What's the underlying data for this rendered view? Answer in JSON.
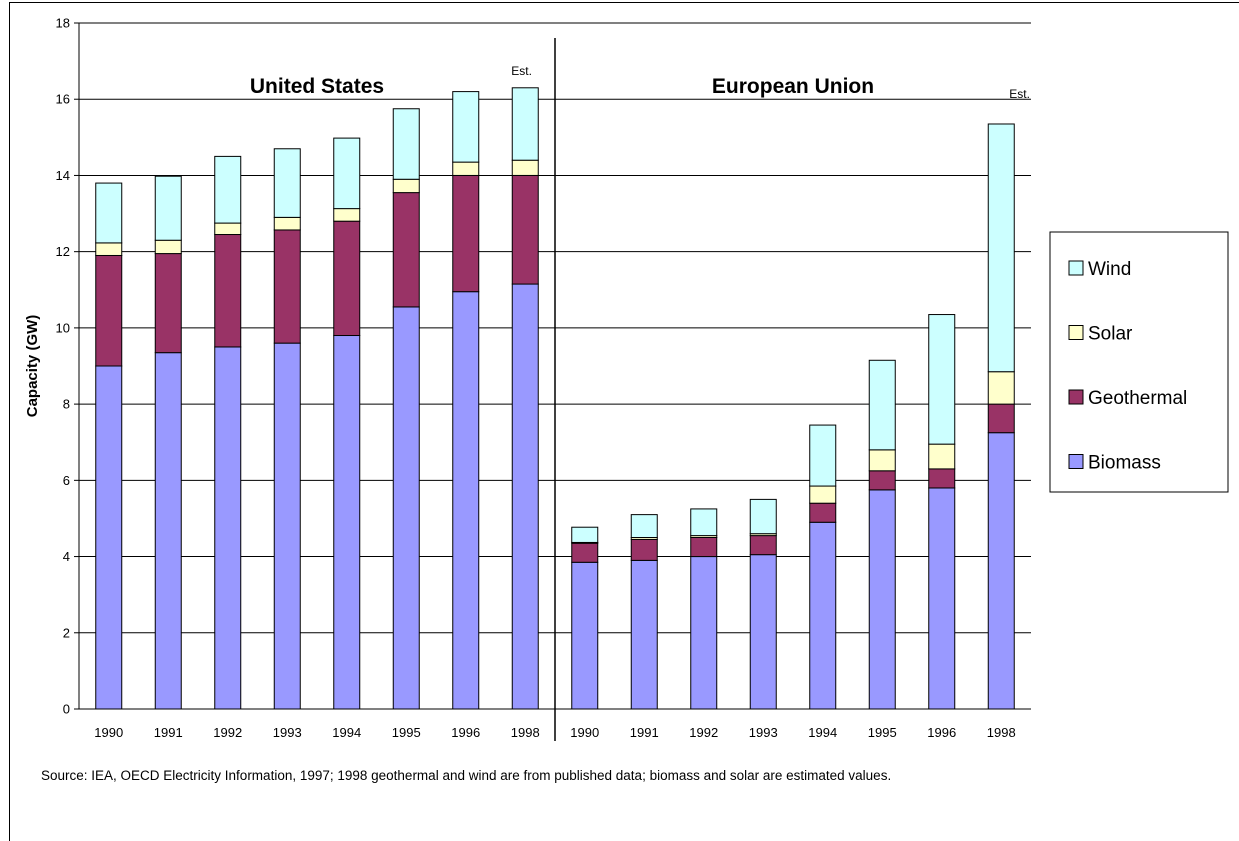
{
  "chart_data": {
    "type": "bar",
    "stacked": true,
    "ylabel": "Capacity (GW)",
    "ylim": [
      0,
      18
    ],
    "yticks": [
      0,
      2,
      4,
      6,
      8,
      10,
      12,
      14,
      16,
      18
    ],
    "grid": true,
    "legend_position": "right",
    "groups": [
      {
        "name": "United States",
        "categories": [
          "1990",
          "1991",
          "1992",
          "1993",
          "1994",
          "1995",
          "1996",
          "1998"
        ],
        "estimate_label": "Est.",
        "series": [
          {
            "name": "Biomass",
            "values": [
              9.0,
              9.35,
              9.5,
              9.6,
              9.8,
              10.55,
              10.95,
              11.15
            ]
          },
          {
            "name": "Geothermal",
            "values": [
              2.9,
              2.6,
              2.95,
              2.97,
              3.0,
              3.0,
              3.05,
              2.85
            ]
          },
          {
            "name": "Solar",
            "values": [
              0.33,
              0.35,
              0.3,
              0.33,
              0.33,
              0.35,
              0.35,
              0.4
            ]
          },
          {
            "name": "Wind",
            "values": [
              1.57,
              1.68,
              1.75,
              1.8,
              1.85,
              1.85,
              1.85,
              1.9
            ]
          }
        ]
      },
      {
        "name": "European Union",
        "categories": [
          "1990",
          "1991",
          "1992",
          "1993",
          "1994",
          "1995",
          "1996",
          "1998"
        ],
        "estimate_label": "Est.",
        "series": [
          {
            "name": "Biomass",
            "values": [
              3.85,
              3.9,
              4.0,
              4.05,
              4.9,
              5.75,
              5.8,
              7.25
            ]
          },
          {
            "name": "Geothermal",
            "values": [
              0.5,
              0.55,
              0.5,
              0.5,
              0.5,
              0.5,
              0.5,
              0.75
            ]
          },
          {
            "name": "Solar",
            "values": [
              0.02,
              0.05,
              0.05,
              0.05,
              0.45,
              0.55,
              0.65,
              0.85
            ]
          },
          {
            "name": "Wind",
            "values": [
              0.4,
              0.6,
              0.7,
              0.9,
              1.6,
              2.35,
              3.4,
              6.5
            ]
          }
        ]
      }
    ],
    "series_colors": {
      "Biomass": "#9999ff",
      "Geothermal": "#993366",
      "Solar": "#ffffcc",
      "Wind": "#ccffff"
    },
    "legend_order": [
      "Wind",
      "Solar",
      "Geothermal",
      "Biomass"
    ]
  },
  "source_note": "Source:  IEA, OECD Electricity Information, 1997; 1998 geothermal and wind are from published data; biomass and solar are estimated values."
}
